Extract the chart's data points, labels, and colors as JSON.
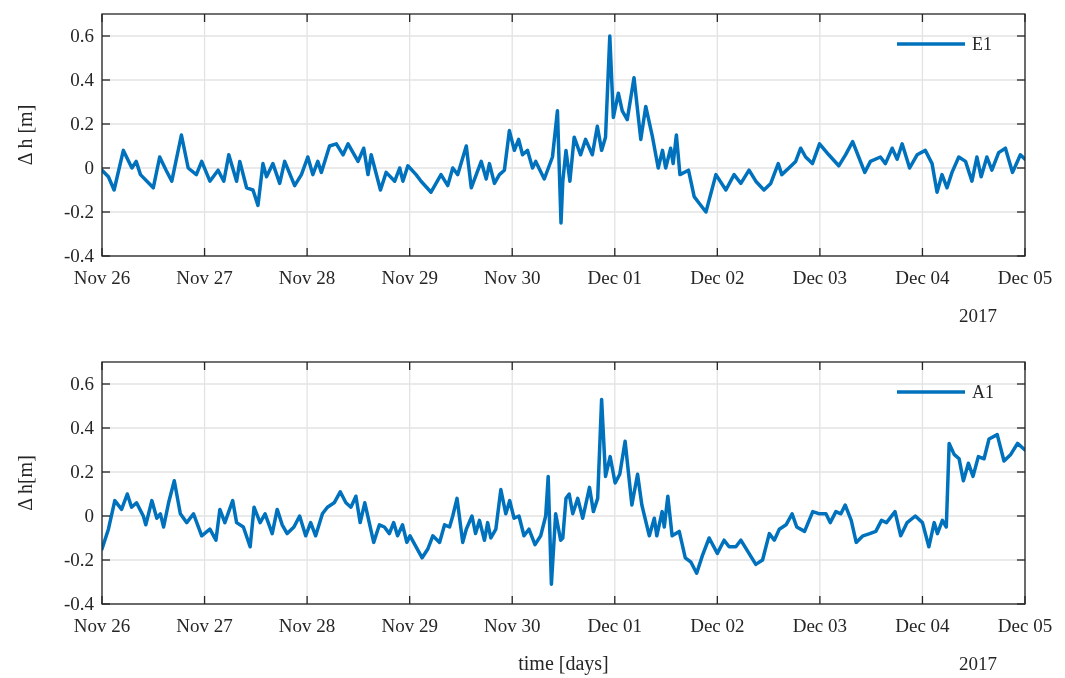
{
  "chart_data": [
    {
      "type": "line",
      "ylabel": "Δ h [m]",
      "annotations": [
        "2017"
      ],
      "grid": true,
      "legend": "top right",
      "xlim": [
        "2017-11-26",
        "2017-12-05"
      ],
      "ylim": [
        -0.4,
        0.7
      ],
      "yticks": [
        -0.4,
        -0.2,
        0,
        0.2,
        0.4,
        0.6
      ],
      "xticks": [
        {
          "value": "2017-11-26",
          "label": "Nov 26"
        },
        {
          "value": "2017-11-27",
          "label": "Nov 27"
        },
        {
          "value": "2017-11-28",
          "label": "Nov 28"
        },
        {
          "value": "2017-11-29",
          "label": "Nov 29"
        },
        {
          "value": "2017-11-30",
          "label": "Nov 30"
        },
        {
          "value": "2017-12-01",
          "label": "Dec 01"
        },
        {
          "value": "2017-12-02",
          "label": "Dec 02"
        },
        {
          "value": "2017-12-03",
          "label": "Dec 03"
        },
        {
          "value": "2017-12-04",
          "label": "Dec 04"
        },
        {
          "value": "2017-12-05",
          "label": "Dec 05"
        }
      ],
      "x": [
        "2017-11-26T00:00",
        "2017-11-26T01:30",
        "2017-11-26T02:50",
        "2017-11-26T05:00",
        "2017-11-26T07:00",
        "2017-11-26T08:00",
        "2017-11-26T09:00",
        "2017-11-26T12:00",
        "2017-11-26T13:30",
        "2017-11-26T15:00",
        "2017-11-26T16:20",
        "2017-11-26T18:35",
        "2017-11-26T20:10",
        "2017-11-26T22:05",
        "2017-11-26T23:20",
        "2017-11-27T01:15",
        "2017-11-27T03:10",
        "2017-11-27T04:30",
        "2017-11-27T05:40",
        "2017-11-27T07:30",
        "2017-11-27T08:15",
        "2017-11-27T09:50",
        "2017-11-27T11:20",
        "2017-11-27T12:30",
        "2017-11-27T13:40",
        "2017-11-27T14:30",
        "2017-11-27T16:00",
        "2017-11-27T17:35",
        "2017-11-27T18:45",
        "2017-11-27T21:05",
        "2017-11-27T22:40",
        "2017-11-28T00:10",
        "2017-11-28T01:20",
        "2017-11-28T02:30",
        "2017-11-28T03:20",
        "2017-11-28T05:15",
        "2017-11-28T06:50",
        "2017-11-28T08:25",
        "2017-11-28T09:35",
        "2017-11-28T11:55",
        "2017-11-28T13:15",
        "2017-11-28T14:15",
        "2017-11-28T15:00",
        "2017-11-28T17:10",
        "2017-11-28T18:30",
        "2017-11-28T20:30",
        "2017-11-28T21:40",
        "2017-11-28T22:25",
        "2017-11-28T23:35",
        "2017-11-29T01:30",
        "2017-11-29T02:40",
        "2017-11-29T05:00",
        "2017-11-29T07:20",
        "2017-11-29T08:55",
        "2017-11-29T10:05",
        "2017-11-29T11:15",
        "2017-11-29T13:15",
        "2017-11-29T14:25",
        "2017-11-29T15:35",
        "2017-11-29T16:45",
        "2017-11-29T17:55",
        "2017-11-29T18:40",
        "2017-11-29T19:50",
        "2017-11-29T21:00",
        "2017-11-29T22:10",
        "2017-11-29T23:20",
        "2017-11-30T00:30",
        "2017-11-30T01:30",
        "2017-11-30T02:25",
        "2017-11-30T03:35",
        "2017-11-30T04:45",
        "2017-11-30T05:30",
        "2017-11-30T07:30",
        "2017-11-30T09:25",
        "2017-11-30T10:35",
        "2017-11-30T11:25",
        "2017-11-30T11:50",
        "2017-11-30T12:35",
        "2017-11-30T13:30",
        "2017-11-30T14:30",
        "2017-11-30T16:00",
        "2017-11-30T17:10",
        "2017-11-30T18:45",
        "2017-11-30T19:55",
        "2017-11-30T20:55",
        "2017-11-30T21:50",
        "2017-11-30T22:50",
        "2017-11-30T23:40",
        "2017-12-01T00:50",
        "2017-12-01T01:45",
        "2017-12-01T02:55",
        "2017-12-01T04:30",
        "2017-12-01T06:05",
        "2017-12-01T07:15",
        "2017-12-01T08:50",
        "2017-12-01T10:10",
        "2017-12-01T11:10",
        "2017-12-01T11:55",
        "2017-12-01T13:05",
        "2017-12-01T13:40",
        "2017-12-01T14:25",
        "2017-12-01T15:15",
        "2017-12-01T17:15",
        "2017-12-01T18:35",
        "2017-12-01T19:45",
        "2017-12-01T21:20",
        "2017-12-01T23:40",
        "2017-12-02T02:00",
        "2017-12-02T03:55",
        "2017-12-02T05:30",
        "2017-12-02T07:25",
        "2017-12-02T09:00",
        "2017-12-02T10:55",
        "2017-12-02T12:30",
        "2017-12-02T14:15",
        "2017-12-02T15:05",
        "2017-12-02T16:45",
        "2017-12-02T18:20",
        "2017-12-02T19:30",
        "2017-12-02T20:40",
        "2017-12-02T22:15",
        "2017-12-02T23:55",
        "2017-12-03T02:05",
        "2017-12-03T04:25",
        "2017-12-03T06:00",
        "2017-12-03T07:40",
        "2017-12-03T09:05",
        "2017-12-03T10:30",
        "2017-12-03T11:50",
        "2017-12-03T14:10",
        "2017-12-03T15:20",
        "2017-12-03T16:55",
        "2017-12-03T18:05",
        "2017-12-03T19:15",
        "2017-12-03T21:00",
        "2017-12-03T22:45",
        "2017-12-04T00:40",
        "2017-12-04T02:15",
        "2017-12-04T03:25",
        "2017-12-04T04:35",
        "2017-12-04T05:45",
        "2017-12-04T06:55",
        "2017-12-04T08:30",
        "2017-12-04T10:05",
        "2017-12-04T11:35",
        "2017-12-04T12:45",
        "2017-12-04T13:45",
        "2017-12-04T15:05",
        "2017-12-04T16:15",
        "2017-12-04T17:50",
        "2017-12-04T19:25",
        "2017-12-04T21:05",
        "2017-12-04T22:55",
        "2017-12-05T00:00"
      ],
      "series": [
        {
          "name": "E1",
          "color": "#0072bd",
          "values": [
            -0.01,
            -0.04,
            -0.1,
            0.08,
            0,
            0.03,
            -0.03,
            -0.09,
            0.05,
            -0.01,
            -0.06,
            0.15,
            0,
            -0.03,
            0.03,
            -0.06,
            -0.01,
            -0.06,
            0.06,
            -0.06,
            0.03,
            -0.09,
            -0.1,
            -0.17,
            0.02,
            -0.04,
            0.02,
            -0.07,
            0.03,
            -0.08,
            -0.03,
            0.05,
            -0.03,
            0.03,
            -0.02,
            0.1,
            0.11,
            0.06,
            0.11,
            0.03,
            0.09,
            -0.03,
            0.06,
            -0.1,
            -0.02,
            -0.06,
            0,
            -0.06,
            0.01,
            -0.03,
            -0.06,
            -0.11,
            -0.03,
            -0.08,
            0,
            -0.03,
            0.1,
            -0.09,
            -0.03,
            0.03,
            -0.05,
            0.02,
            -0.07,
            -0.03,
            -0.01,
            0.17,
            0.08,
            0.13,
            0.06,
            0.08,
            0,
            0.03,
            -0.05,
            0.05,
            0.26,
            -0.25,
            -0.06,
            0.08,
            -0.06,
            0.14,
            0.06,
            0.13,
            0.06,
            0.19,
            0.08,
            0.14,
            0.6,
            0.23,
            0.34,
            0.26,
            0.22,
            0.41,
            0.13,
            0.28,
            0.14,
            0,
            0.08,
            0,
            0.09,
            0.02,
            0.15,
            -0.03,
            -0.01,
            -0.13,
            -0.16,
            -0.2,
            -0.03,
            -0.1,
            -0.03,
            -0.07,
            -0.01,
            -0.06,
            -0.1,
            -0.07,
            0.02,
            -0.03,
            0,
            0.03,
            0.09,
            0.05,
            0.02,
            0.11,
            0.06,
            0.01,
            0.06,
            0.12,
            0.05,
            -0.02,
            0.03,
            0.05,
            0.02,
            0.09,
            0.04,
            0.11,
            0,
            0.06,
            0.08,
            0.02,
            -0.11,
            -0.03,
            -0.09,
            -0.02,
            0.05,
            0.03,
            -0.06,
            0.05,
            -0.04,
            0.05,
            -0.01,
            0.07,
            0.09,
            -0.02,
            0.06,
            0.04
          ]
        }
      ]
    },
    {
      "type": "line",
      "ylabel": "Δ h[m]",
      "xlabel": "time [days]",
      "annotations": [
        "2017"
      ],
      "grid": true,
      "legend": "top right",
      "xlim": [
        "2017-11-26",
        "2017-12-05"
      ],
      "ylim": [
        -0.4,
        0.7
      ],
      "yticks": [
        -0.4,
        -0.2,
        0,
        0.2,
        0.4,
        0.6
      ],
      "xticks": [
        {
          "value": "2017-11-26",
          "label": "Nov 26"
        },
        {
          "value": "2017-11-27",
          "label": "Nov 27"
        },
        {
          "value": "2017-11-28",
          "label": "Nov 28"
        },
        {
          "value": "2017-11-29",
          "label": "Nov 29"
        },
        {
          "value": "2017-11-30",
          "label": "Nov 30"
        },
        {
          "value": "2017-12-01",
          "label": "Dec 01"
        },
        {
          "value": "2017-12-02",
          "label": "Dec 02"
        },
        {
          "value": "2017-12-03",
          "label": "Dec 03"
        },
        {
          "value": "2017-12-04",
          "label": "Dec 04"
        },
        {
          "value": "2017-12-05",
          "label": "Dec 05"
        }
      ],
      "x": [
        "2017-11-26T00:00",
        "2017-11-26T01:30",
        "2017-11-26T03:00",
        "2017-11-26T04:35",
        "2017-11-26T05:55",
        "2017-11-26T06:55",
        "2017-11-26T08:05",
        "2017-11-26T09:40",
        "2017-11-26T10:15",
        "2017-11-26T11:40",
        "2017-11-26T12:50",
        "2017-11-26T13:40",
        "2017-11-26T14:25",
        "2017-11-26T15:35",
        "2017-11-26T16:55",
        "2017-11-26T18:20",
        "2017-11-26T19:50",
        "2017-11-26T21:25",
        "2017-11-26T23:20",
        "2017-11-27T01:15",
        "2017-11-27T02:40",
        "2017-11-27T03:35",
        "2017-11-27T04:45",
        "2017-11-27T06:35",
        "2017-11-27T07:30",
        "2017-11-27T09:05",
        "2017-11-27T10:40",
        "2017-11-27T11:35",
        "2017-11-27T13:00",
        "2017-11-27T14:10",
        "2017-11-27T15:50",
        "2017-11-27T17:00",
        "2017-11-27T18:10",
        "2017-11-27T19:20",
        "2017-11-27T20:55",
        "2017-11-27T22:15",
        "2017-11-27T23:40",
        "2017-11-28T00:50",
        "2017-11-28T02:00",
        "2017-11-28T03:35",
        "2017-11-28T04:45",
        "2017-11-28T06:20",
        "2017-11-28T07:45",
        "2017-11-28T09:05",
        "2017-11-28T10:15",
        "2017-11-28T11:25",
        "2017-11-28T12:25",
        "2017-11-28T13:30",
        "2017-11-28T15:35",
        "2017-11-28T16:55",
        "2017-11-28T18:05",
        "2017-11-28T19:15",
        "2017-11-28T20:15",
        "2017-11-28T21:10",
        "2017-11-28T22:20",
        "2017-11-28T23:20",
        "2017-11-29T00:05",
        "2017-11-29T01:30",
        "2017-11-29T02:55",
        "2017-11-29T04:15",
        "2017-11-29T05:25",
        "2017-11-29T07:00",
        "2017-11-29T08:10",
        "2017-11-29T09:20",
        "2017-11-29T10:05",
        "2017-11-29T11:05",
        "2017-11-29T12:25",
        "2017-11-29T13:15",
        "2017-11-29T14:35",
        "2017-11-29T15:25",
        "2017-11-29T16:20",
        "2017-11-29T17:30",
        "2017-11-29T18:15",
        "2017-11-29T19:00",
        "2017-11-29T20:10",
        "2017-11-29T21:20",
        "2017-11-29T22:30",
        "2017-11-29T23:25",
        "2017-11-30T00:25",
        "2017-11-30T01:35",
        "2017-11-30T02:45",
        "2017-11-30T03:55",
        "2017-11-30T05:20",
        "2017-11-30T06:40",
        "2017-11-30T07:50",
        "2017-11-30T08:25",
        "2017-11-30T09:10",
        "2017-11-30T10:10",
        "2017-11-30T11:20",
        "2017-11-30T11:50",
        "2017-11-30T12:35",
        "2017-11-30T13:20",
        "2017-11-30T14:10",
        "2017-11-30T15:20",
        "2017-11-30T16:30",
        "2017-11-30T18:05",
        "2017-11-30T19:00",
        "2017-11-30T20:00",
        "2017-11-30T20:55",
        "2017-11-30T21:50",
        "2017-11-30T22:55",
        "2017-12-01T00:05",
        "2017-12-01T01:10",
        "2017-12-01T02:25",
        "2017-12-01T04:00",
        "2017-12-01T05:20",
        "2017-12-01T06:20",
        "2017-12-01T08:05",
        "2017-12-01T09:15",
        "2017-12-01T09:50",
        "2017-12-01T11:05",
        "2017-12-01T11:35",
        "2017-12-01T12:25",
        "2017-12-01T13:25",
        "2017-12-01T15:05",
        "2017-12-01T16:30",
        "2017-12-01T17:50",
        "2017-12-01T19:10",
        "2017-12-01T20:30",
        "2017-12-01T22:05",
        "2017-12-02T00:00",
        "2017-12-02T01:35",
        "2017-12-02T02:45",
        "2017-12-02T04:20",
        "2017-12-02T05:30",
        "2017-12-02T07:05",
        "2017-12-02T09:00",
        "2017-12-02T10:35",
        "2017-12-02T12:10",
        "2017-12-02T13:20",
        "2017-12-02T14:30",
        "2017-12-02T16:05",
        "2017-12-02T17:30",
        "2017-12-02T18:35",
        "2017-12-02T20:25",
        "2017-12-02T22:20",
        "2017-12-02T23:55",
        "2017-12-03T01:25",
        "2017-12-03T02:25",
        "2017-12-03T03:45",
        "2017-12-03T04:55",
        "2017-12-03T05:55",
        "2017-12-03T07:20",
        "2017-12-03T08:30",
        "2017-12-03T10:05",
        "2017-12-03T11:40",
        "2017-12-03T13:05",
        "2017-12-03T14:25",
        "2017-12-03T15:35",
        "2017-12-03T17:35",
        "2017-12-03T18:55",
        "2017-12-03T20:25",
        "2017-12-03T22:20",
        "2017-12-04T00:00",
        "2017-12-04T01:30",
        "2017-12-04T02:45",
        "2017-12-04T03:30",
        "2017-12-04T04:40",
        "2017-12-04T05:35",
        "2017-12-04T06:15",
        "2017-12-04T07:25",
        "2017-12-04T08:35",
        "2017-12-04T09:35",
        "2017-12-04T10:45",
        "2017-12-04T11:50",
        "2017-12-04T13:05",
        "2017-12-04T14:25",
        "2017-12-04T15:35",
        "2017-12-04T17:30",
        "2017-12-04T19:05",
        "2017-12-04T20:40",
        "2017-12-04T22:15",
        "2017-12-05T00:00"
      ],
      "series": [
        {
          "name": "A1",
          "color": "#0072bd",
          "values": [
            -0.15,
            -0.06,
            0.07,
            0.03,
            0.1,
            0.04,
            0.06,
            0,
            -0.04,
            0.07,
            -0.01,
            0.01,
            -0.05,
            0.06,
            0.16,
            0.01,
            -0.03,
            0.01,
            -0.09,
            -0.06,
            -0.11,
            0.03,
            -0.03,
            0.07,
            -0.03,
            -0.05,
            -0.14,
            0.04,
            -0.03,
            0.01,
            -0.08,
            0.03,
            -0.04,
            -0.08,
            -0.05,
            0,
            -0.09,
            -0.03,
            -0.09,
            0.01,
            0.04,
            0.06,
            0.11,
            0.06,
            0.04,
            0.09,
            -0.03,
            0.06,
            -0.12,
            -0.04,
            -0.05,
            -0.08,
            -0.03,
            -0.09,
            -0.04,
            -0.12,
            -0.09,
            -0.14,
            -0.19,
            -0.15,
            -0.09,
            -0.12,
            -0.04,
            -0.05,
            0,
            0.08,
            -0.12,
            -0.06,
            0,
            -0.08,
            -0.02,
            -0.11,
            -0.03,
            -0.1,
            -0.06,
            0.12,
            0.01,
            0.07,
            -0.01,
            0,
            -0.09,
            -0.06,
            -0.13,
            -0.09,
            0,
            0.18,
            -0.31,
            0.01,
            -0.11,
            -0.1,
            0.08,
            0.1,
            0.01,
            0.08,
            -0.01,
            0.13,
            0.02,
            0.08,
            0.53,
            0.18,
            0.27,
            0.15,
            0.19,
            0.34,
            0.05,
            0.19,
            0.05,
            -0.09,
            -0.01,
            -0.09,
            0.02,
            -0.05,
            0.09,
            -0.09,
            -0.07,
            -0.19,
            -0.21,
            -0.26,
            -0.18,
            -0.1,
            -0.17,
            -0.11,
            -0.14,
            -0.14,
            -0.11,
            -0.16,
            -0.22,
            -0.2,
            -0.08,
            -0.11,
            -0.06,
            -0.04,
            0.01,
            -0.05,
            -0.07,
            0.02,
            0.01,
            0.01,
            -0.03,
            0.02,
            0.01,
            0.05,
            -0.02,
            -0.12,
            -0.09,
            -0.08,
            -0.07,
            -0.02,
            -0.03,
            0.02,
            -0.09,
            -0.03,
            0,
            -0.03,
            -0.14,
            -0.03,
            -0.08,
            -0.02,
            -0.05,
            0.33,
            0.28,
            0.26,
            0.16,
            0.24,
            0.18,
            0.27,
            0.26,
            0.35,
            0.37,
            0.25,
            0.28,
            0.33,
            0.3
          ]
        }
      ]
    }
  ]
}
